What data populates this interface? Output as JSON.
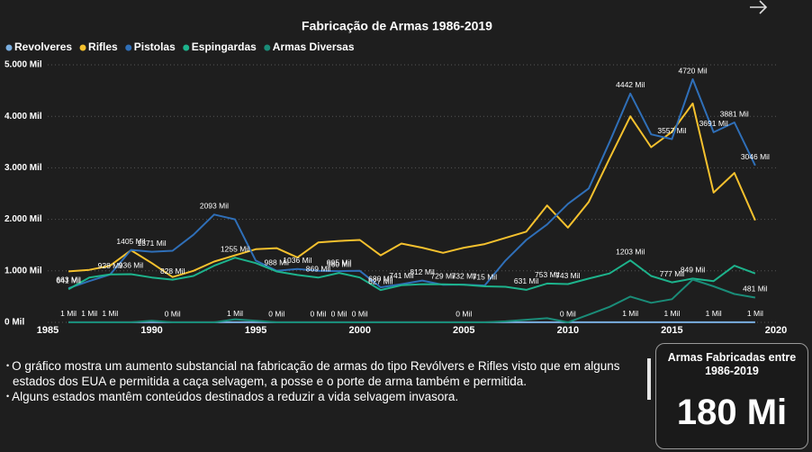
{
  "chart_data": {
    "type": "line",
    "title": "Fabricação de Armas 1986-2019",
    "x": [
      1986,
      1987,
      1988,
      1989,
      1990,
      1991,
      1992,
      1993,
      1994,
      1995,
      1996,
      1997,
      1998,
      1999,
      2000,
      2001,
      2002,
      2003,
      2004,
      2005,
      2006,
      2007,
      2008,
      2009,
      2010,
      2011,
      2012,
      2013,
      2014,
      2015,
      2016,
      2017,
      2018,
      2019
    ],
    "xlim": [
      1985,
      2020
    ],
    "xticks": [
      1985,
      1990,
      1995,
      2000,
      2005,
      2010,
      2015,
      2020
    ],
    "ylim": [
      0,
      5000
    ],
    "yticks": [
      {
        "value": 0,
        "label": "0 Mil"
      },
      {
        "value": 1000,
        "label": "1.000 Mil"
      },
      {
        "value": 2000,
        "label": "2.000 Mil"
      },
      {
        "value": 3000,
        "label": "3.000 Mil"
      },
      {
        "value": 4000,
        "label": "4.000 Mil"
      },
      {
        "value": 5000,
        "label": "5.000 Mil"
      }
    ],
    "grid": true,
    "series": [
      {
        "name": "Revolveres",
        "color": "#7aaee0",
        "values": [
          1,
          1,
          1,
          1,
          1,
          1,
          1,
          1,
          1,
          1,
          1,
          1,
          1,
          1,
          1,
          1,
          1,
          1,
          1,
          1,
          1,
          1,
          1,
          1,
          1,
          1,
          1,
          1,
          1,
          1,
          1,
          1,
          1,
          1
        ],
        "value_labels": [
          "1 Mil",
          "1 Mil",
          "1 Mil",
          null,
          null,
          null,
          null,
          null,
          "1 Mil",
          null,
          null,
          null,
          null,
          null,
          null,
          null,
          null,
          null,
          null,
          null,
          null,
          null,
          null,
          null,
          null,
          null,
          null,
          "1 Mil",
          null,
          "1 Mil",
          null,
          "1 Mil",
          null,
          "1 Mil"
        ]
      },
      {
        "name": "Rifles",
        "color": "#f5c12e",
        "values": [
          990,
          1020,
          1100,
          1400,
          1150,
          880,
          1000,
          1180,
          1300,
          1420,
          1440,
          1260,
          1550,
          1580,
          1600,
          1300,
          1530,
          1450,
          1350,
          1450,
          1520,
          1640,
          1760,
          2270,
          1840,
          2340,
          3180,
          4000,
          3400,
          3700,
          4250,
          2520,
          2900,
          1980
        ]
      },
      {
        "name": "Pistolas",
        "color": "#2f6fb8",
        "values": [
          663,
          800,
          928,
          1405,
          1371,
          1390,
          1700,
          2093,
          2000,
          1200,
          1000,
          1036,
          1000,
          995,
          1000,
          680,
          741,
          812,
          729,
          732,
          715,
          1200,
          1600,
          1900,
          2300,
          2600,
          3500,
          4442,
          3650,
          3557,
          4720,
          3691,
          3881,
          3046
        ],
        "value_labels": [
          "663 Mil",
          null,
          "928 Mil",
          "1405 Mil",
          "1371 Mil",
          null,
          null,
          "2093 Mil",
          null,
          null,
          null,
          "1036 Mil",
          null,
          "995 Mil",
          null,
          "680 Mil",
          "741 Mil",
          "812 Mil",
          "729 Mil",
          "732 Mil",
          "715 Mil",
          null,
          null,
          null,
          null,
          null,
          null,
          "4442 Mil",
          null,
          "3557 Mil",
          "4720 Mil",
          "3691 Mil",
          "3881 Mil",
          "3046 Mil"
        ]
      },
      {
        "name": "Espingardas",
        "color": "#1db38c",
        "values": [
          641,
          870,
          930,
          936,
          870,
          828,
          900,
          1100,
          1255,
          1150,
          988,
          920,
          869,
          960,
          870,
          627,
          720,
          741,
          740,
          730,
          700,
          690,
          631,
          753,
          743,
          850,
          950,
          1203,
          900,
          777,
          849,
          800,
          1100,
          950
        ],
        "value_labels": [
          "641 Mil",
          null,
          null,
          "936 Mil",
          null,
          "828 Mil",
          null,
          null,
          "1255 Mil",
          null,
          "988 Mil",
          null,
          "869 Mil",
          "960 Mil",
          null,
          "627 Mil",
          null,
          null,
          null,
          null,
          null,
          null,
          "631 Mil",
          "753 Mil",
          "743 Mil",
          null,
          null,
          "1203 Mil",
          null,
          "777 Mil",
          "849 Mil",
          null,
          null,
          null
        ]
      },
      {
        "name": "Armas Diversas",
        "color": "#1a8c78",
        "values": [
          0,
          0,
          0,
          0,
          30,
          0,
          0,
          0,
          60,
          30,
          0,
          0,
          0,
          0,
          0,
          0,
          0,
          0,
          0,
          0,
          0,
          20,
          50,
          80,
          0,
          150,
          300,
          500,
          380,
          450,
          830,
          700,
          550,
          481
        ],
        "value_labels": [
          null,
          null,
          null,
          null,
          null,
          "0 Mil",
          null,
          null,
          null,
          null,
          "0 Mil",
          null,
          "0 Mil",
          "0 Mil",
          "0 Mil",
          null,
          null,
          null,
          null,
          "0 Mil",
          null,
          null,
          null,
          null,
          "0 Mil",
          null,
          null,
          null,
          null,
          null,
          null,
          null,
          null,
          "481 Mil"
        ]
      }
    ]
  },
  "notes": [
    "O gráfico mostra um aumento substancial na fabricação de armas do tipo Revólvers e Rifles visto que em alguns estados dos EUA e permitida a caça selvagem, a posse e o porte de arma também e permitida.",
    "Alguns estados mantêm conteúdos destinados a reduzir a vida selvagem invasora."
  ],
  "card": {
    "title": "Armas Fabricadas entre 1986-2019",
    "value": "180 Mi"
  }
}
